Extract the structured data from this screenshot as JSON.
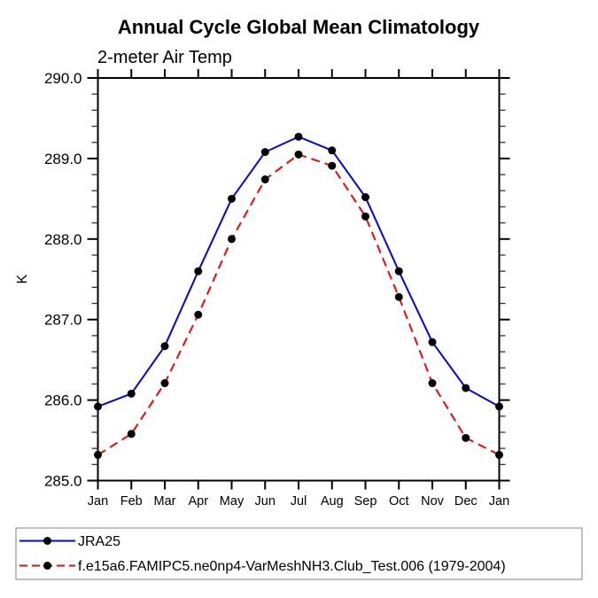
{
  "chart_data": {
    "type": "line",
    "title": "Annual Cycle Global Mean Climatology",
    "subtitle": "2-meter Air Temp",
    "xlabel": "",
    "ylabel": "K",
    "categories": [
      "Jan",
      "Feb",
      "Mar",
      "Apr",
      "May",
      "Jun",
      "Jul",
      "Aug",
      "Sep",
      "Oct",
      "Nov",
      "Dec",
      "Jan"
    ],
    "ylim": [
      285.0,
      290.0
    ],
    "y_major_step": 1.0,
    "y_minor_step": 0.2,
    "y_tick_labels": [
      "285.0",
      "286.0",
      "287.0",
      "288.0",
      "289.0",
      "290.0"
    ],
    "grid": "off",
    "legend_position": "bottom-left",
    "frame_color": "#000000",
    "marker": "filled-black-circle",
    "series": [
      {
        "name": "JRA25",
        "color": "#0000ff",
        "style": "solid",
        "values": [
          285.92,
          286.08,
          286.67,
          287.6,
          288.5,
          289.08,
          289.27,
          289.1,
          288.52,
          287.6,
          286.72,
          286.15,
          285.92
        ]
      },
      {
        "name": "f.e15a6.FAMIPC5.ne0np4-VarMeshNH3.Club_Test.006 (1979-2004)",
        "color": "#ff0000",
        "style": "dashed",
        "values": [
          285.32,
          285.58,
          286.21,
          287.06,
          288.0,
          288.74,
          289.05,
          288.91,
          288.28,
          287.28,
          286.21,
          285.53,
          285.32
        ]
      }
    ]
  }
}
